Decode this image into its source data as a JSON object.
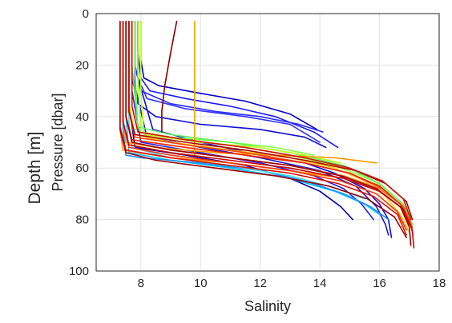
{
  "chart_data": {
    "type": "line",
    "title": "",
    "outer_ylabel": "Depth [m]",
    "xlabel": "Salinity",
    "ylabel": "Pressure [dbar]",
    "xlim": [
      6.5,
      18
    ],
    "ylim": [
      0,
      100
    ],
    "y_reversed": true,
    "grid": true,
    "legend": "none",
    "xticks": [
      8,
      10,
      12,
      14,
      16,
      18
    ],
    "yticks": [
      0,
      20,
      40,
      60,
      80,
      100
    ],
    "series": [
      {
        "color": "#1a1aff",
        "x": [
          7.9,
          7.9,
          8.0,
          8.3,
          9.5,
          11.0,
          12.5,
          13.8,
          14.6
        ],
        "y": [
          3,
          15,
          25,
          30,
          33,
          36,
          40,
          46,
          52
        ]
      },
      {
        "color": "#0000cc",
        "x": [
          8.0,
          8.0,
          8.1,
          8.6,
          10.0,
          11.5,
          13.0,
          13.9
        ],
        "y": [
          3,
          18,
          25,
          28,
          31,
          34,
          39,
          45
        ]
      },
      {
        "color": "#2a2aff",
        "x": [
          7.8,
          7.8,
          8.0,
          9.0,
          10.5,
          12.0,
          13.3,
          14.1
        ],
        "y": [
          3,
          20,
          30,
          35,
          38,
          40,
          43,
          46
        ]
      },
      {
        "color": "#1010d0",
        "x": [
          7.7,
          7.7,
          7.9,
          8.5,
          10.0,
          12.0,
          13.5,
          14.2
        ],
        "y": [
          3,
          25,
          35,
          40,
          43,
          45,
          48,
          52
        ]
      },
      {
        "color": "#3030ff",
        "x": [
          7.8,
          7.8,
          8.2,
          9.5,
          11.5,
          13.0,
          14.0
        ],
        "y": [
          3,
          22,
          33,
          37,
          40,
          43,
          50
        ]
      },
      {
        "color": "#0a0aee",
        "x": [
          7.9,
          7.9,
          8.4,
          10.0,
          12.0,
          13.5,
          14.5,
          15.5,
          16.0,
          16.3,
          16.4
        ],
        "y": [
          3,
          25,
          45,
          50,
          55,
          58,
          62,
          68,
          74,
          80,
          87
        ]
      },
      {
        "color": "#1a1acc",
        "x": [
          7.8,
          7.8,
          8.2,
          10.0,
          12.0,
          14.0,
          15.2,
          15.9,
          16.2,
          16.3
        ],
        "y": [
          3,
          28,
          48,
          52,
          56,
          61,
          67,
          75,
          82,
          86
        ]
      },
      {
        "color": "#2222ee",
        "x": [
          7.7,
          7.7,
          8.0,
          10.0,
          12.0,
          13.8,
          14.8,
          15.4,
          15.8
        ],
        "y": [
          3,
          30,
          50,
          54,
          58,
          63,
          68,
          74,
          80
        ]
      },
      {
        "color": "#0000b0",
        "x": [
          7.6,
          7.6,
          7.8,
          9.5,
          11.5,
          13.0,
          14.0,
          14.7,
          15.1
        ],
        "y": [
          3,
          35,
          52,
          55,
          59,
          64,
          69,
          75,
          80
        ]
      },
      {
        "color": "#00bfff",
        "x": [
          7.5,
          7.5,
          7.6,
          9.0,
          11.0,
          13.0,
          14.5,
          15.5,
          16.0
        ],
        "y": [
          3,
          40,
          54,
          57,
          60,
          64,
          69,
          74,
          78
        ]
      },
      {
        "color": "#1e90ff",
        "x": [
          7.4,
          7.4,
          7.5,
          8.0,
          10.0,
          12.0,
          13.5,
          14.8,
          15.7,
          16.3
        ],
        "y": [
          3,
          45,
          55,
          56,
          58,
          61,
          65,
          70,
          75,
          80
        ]
      },
      {
        "color": "#40e0ff",
        "x": [
          7.6,
          7.6,
          7.7,
          9.0,
          11.0,
          13.0,
          14.6,
          15.5
        ],
        "y": [
          3,
          42,
          52,
          56,
          59,
          63,
          68,
          72
        ]
      },
      {
        "color": "#80ff40",
        "x": [
          7.8,
          7.8,
          7.9,
          9.0,
          11.0,
          12.5,
          13.8
        ],
        "y": [
          3,
          20,
          46,
          48,
          50,
          52,
          55
        ]
      },
      {
        "color": "#a0ff30",
        "x": [
          7.9,
          7.9,
          8.0,
          9.5,
          11.5,
          13.0,
          14.5,
          15.8,
          16.6,
          17.0,
          17.1
        ],
        "y": [
          3,
          25,
          46,
          49,
          52,
          55,
          59,
          65,
          72,
          78,
          82
        ]
      },
      {
        "color": "#60ee60",
        "x": [
          7.7,
          7.7,
          7.9,
          9.0,
          11.0,
          13.0,
          14.8,
          16.0,
          16.8,
          17.1
        ],
        "y": [
          3,
          20,
          44,
          47,
          50,
          54,
          59,
          66,
          74,
          82
        ]
      },
      {
        "color": "#c0ff20",
        "x": [
          8.0,
          8.0,
          8.1,
          10.0,
          12.0,
          13.5,
          14.7
        ],
        "y": [
          3,
          30,
          47,
          50,
          52,
          55,
          58
        ]
      },
      {
        "color": "#ffcc00",
        "x": [
          7.6,
          7.6,
          7.8,
          9.0,
          11.0,
          13.0,
          14.5,
          15.5,
          16.2,
          16.7,
          17.0
        ],
        "y": [
          3,
          35,
          47,
          50,
          53,
          56,
          60,
          65,
          71,
          78,
          85
        ]
      },
      {
        "color": "#ffa500",
        "x": [
          9.8,
          9.8,
          9.8,
          9.8
        ],
        "y": [
          3,
          20,
          40,
          55
        ]
      },
      {
        "color": "#ff9900",
        "x": [
          7.4,
          7.4,
          7.5,
          8.5,
          10.5,
          12.5,
          14.5,
          15.9
        ],
        "y": [
          3,
          40,
          50,
          52,
          54,
          55,
          56,
          58
        ]
      },
      {
        "color": "#ff8c00",
        "x": [
          7.3,
          7.3,
          7.4,
          9.0,
          11.0,
          13.0,
          14.8,
          16.0,
          16.8,
          17.0
        ],
        "y": [
          3,
          45,
          53,
          56,
          58,
          61,
          64,
          69,
          76,
          82
        ]
      },
      {
        "color": "#ff6600",
        "x": [
          7.5,
          7.5,
          7.7,
          9.0,
          11.0,
          13.0,
          14.8,
          16.0,
          16.7,
          17.0,
          17.1
        ],
        "y": [
          3,
          40,
          50,
          53,
          56,
          59,
          63,
          68,
          74,
          80,
          85
        ]
      },
      {
        "color": "#ff4500",
        "x": [
          7.6,
          7.6,
          7.8,
          9.5,
          11.5,
          13.5,
          15.0,
          16.1,
          16.8,
          17.1
        ],
        "y": [
          3,
          38,
          48,
          51,
          54,
          58,
          62,
          68,
          75,
          83
        ]
      },
      {
        "color": "#ff3300",
        "x": [
          7.4,
          7.4,
          7.6,
          9.0,
          11.0,
          13.0,
          14.7,
          15.9,
          16.6,
          16.9
        ],
        "y": [
          3,
          42,
          52,
          55,
          58,
          61,
          65,
          70,
          77,
          84
        ]
      },
      {
        "color": "#ee2200",
        "x": [
          7.5,
          7.5,
          7.7,
          9.5,
          11.5,
          13.5,
          15.0,
          16.0,
          16.7,
          17.0
        ],
        "y": [
          3,
          40,
          49,
          52,
          55,
          58,
          62,
          67,
          74,
          82
        ]
      },
      {
        "color": "#dd1100",
        "x": [
          7.3,
          7.3,
          7.5,
          9.0,
          11.0,
          13.0,
          14.6,
          15.8,
          16.6,
          16.9
        ],
        "y": [
          3,
          44,
          53,
          56,
          59,
          62,
          66,
          71,
          78,
          86
        ]
      },
      {
        "color": "#cc0000",
        "x": [
          7.4,
          7.4,
          7.6,
          9.0,
          11.0,
          13.0,
          14.8,
          16.0,
          16.8,
          17.1,
          17.15
        ],
        "y": [
          3,
          42,
          51,
          54,
          57,
          60,
          64,
          69,
          76,
          84,
          91
        ]
      },
      {
        "color": "#b00000",
        "x": [
          7.6,
          7.6,
          7.8,
          9.5,
          11.5,
          13.5,
          15.2,
          16.2,
          16.9,
          17.1
        ],
        "y": [
          3,
          38,
          47,
          50,
          53,
          57,
          61,
          66,
          73,
          80
        ]
      },
      {
        "color": "#990000",
        "x": [
          7.5,
          7.5,
          7.7,
          9.0,
          11.0,
          13.0,
          14.7,
          15.9,
          16.7,
          17.0,
          17.05
        ],
        "y": [
          3,
          40,
          50,
          53,
          56,
          59,
          63,
          68,
          75,
          83,
          90
        ]
      },
      {
        "color": "#a00000",
        "x": [
          7.3,
          7.3,
          7.5,
          8.5,
          10.5,
          12.5,
          14.3,
          15.6,
          16.5,
          16.9
        ],
        "y": [
          3,
          45,
          54,
          57,
          60,
          63,
          67,
          72,
          79,
          87
        ]
      },
      {
        "color": "#8b0000",
        "x": [
          9.2,
          9.0,
          8.8,
          8.7,
          8.7
        ],
        "y": [
          3,
          15,
          28,
          38,
          46
        ]
      },
      {
        "color": "#d01000",
        "x": [
          7.7,
          7.7,
          7.9,
          9.5,
          11.5,
          13.5,
          15.0,
          16.1,
          16.8,
          17.05
        ],
        "y": [
          3,
          36,
          46,
          49,
          52,
          56,
          60,
          65,
          72,
          80
        ]
      }
    ]
  }
}
